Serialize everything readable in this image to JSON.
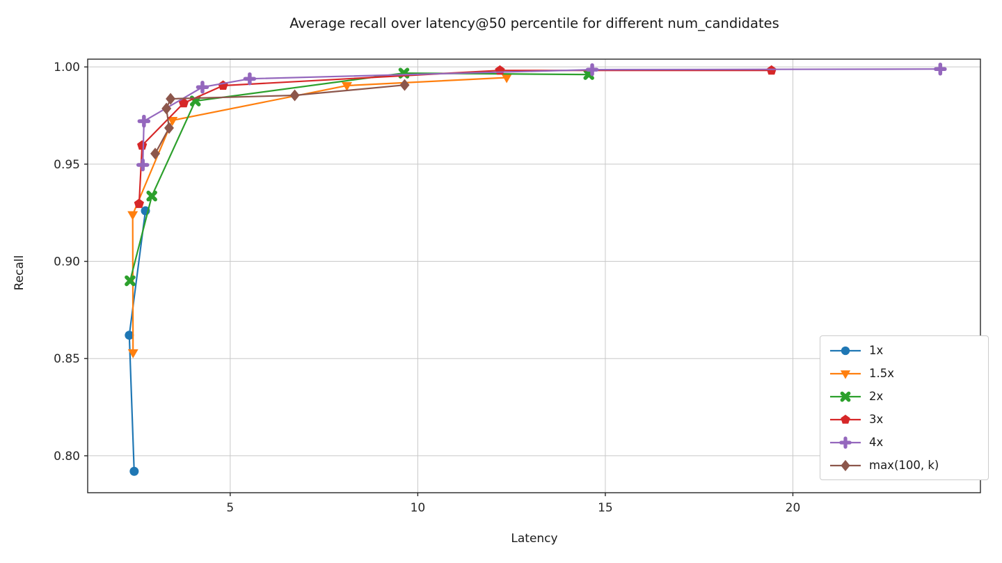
{
  "chart_data": {
    "type": "line",
    "title": "Average recall over latency@50 percentile for different num_candidates",
    "xlabel": "Latency",
    "ylabel": "Recall",
    "xlim": [
      1.2,
      25.0
    ],
    "ylim": [
      0.781,
      1.004
    ],
    "x_ticks": [
      5,
      10,
      15,
      20
    ],
    "y_ticks": [
      0.8,
      0.85,
      0.9,
      0.95,
      1.0
    ],
    "grid": true,
    "grid_color": "#c8c8c8",
    "spine_color": "#262626",
    "legend_position": "lower right",
    "series": [
      {
        "name": "1x",
        "color": "#1f77b4",
        "marker": "circle-icon",
        "points": [
          [
            2.44,
            0.792
          ],
          [
            2.31,
            0.862
          ],
          [
            2.74,
            0.926
          ]
        ]
      },
      {
        "name": "1.5x",
        "color": "#ff7f0e",
        "marker": "triangle-down-icon",
        "points": [
          [
            2.41,
            0.853
          ],
          [
            2.4,
            0.924
          ],
          [
            3.46,
            0.9725
          ],
          [
            8.11,
            0.9904
          ],
          [
            12.37,
            0.9945
          ]
        ]
      },
      {
        "name": "2x",
        "color": "#2ca02c",
        "marker": "x-icon",
        "points": [
          [
            2.33,
            0.89
          ],
          [
            2.91,
            0.9336
          ],
          [
            4.07,
            0.9825
          ],
          [
            9.63,
            0.9968
          ],
          [
            14.56,
            0.9961
          ]
        ]
      },
      {
        "name": "3x",
        "color": "#d62728",
        "marker": "pentagon-icon",
        "points": [
          [
            2.57,
            0.9296
          ],
          [
            2.65,
            0.9596
          ],
          [
            3.76,
            0.9814
          ],
          [
            4.81,
            0.9904
          ],
          [
            12.19,
            0.9982
          ],
          [
            19.43,
            0.9982
          ]
        ]
      },
      {
        "name": "4x",
        "color": "#9467bd",
        "marker": "plus-icon",
        "points": [
          [
            2.67,
            0.9496
          ],
          [
            2.7,
            0.9721
          ],
          [
            4.26,
            0.9896
          ],
          [
            5.52,
            0.9939
          ],
          [
            14.65,
            0.9986
          ],
          [
            23.93,
            0.9989
          ]
        ]
      },
      {
        "name": "max(100, k)",
        "color": "#8c564b",
        "marker": "diamond-icon",
        "points": [
          [
            3.0,
            0.9554
          ],
          [
            3.37,
            0.9686
          ],
          [
            3.3,
            0.9786
          ],
          [
            3.41,
            0.9836
          ],
          [
            6.72,
            0.9854
          ],
          [
            9.65,
            0.9907
          ]
        ]
      }
    ]
  }
}
